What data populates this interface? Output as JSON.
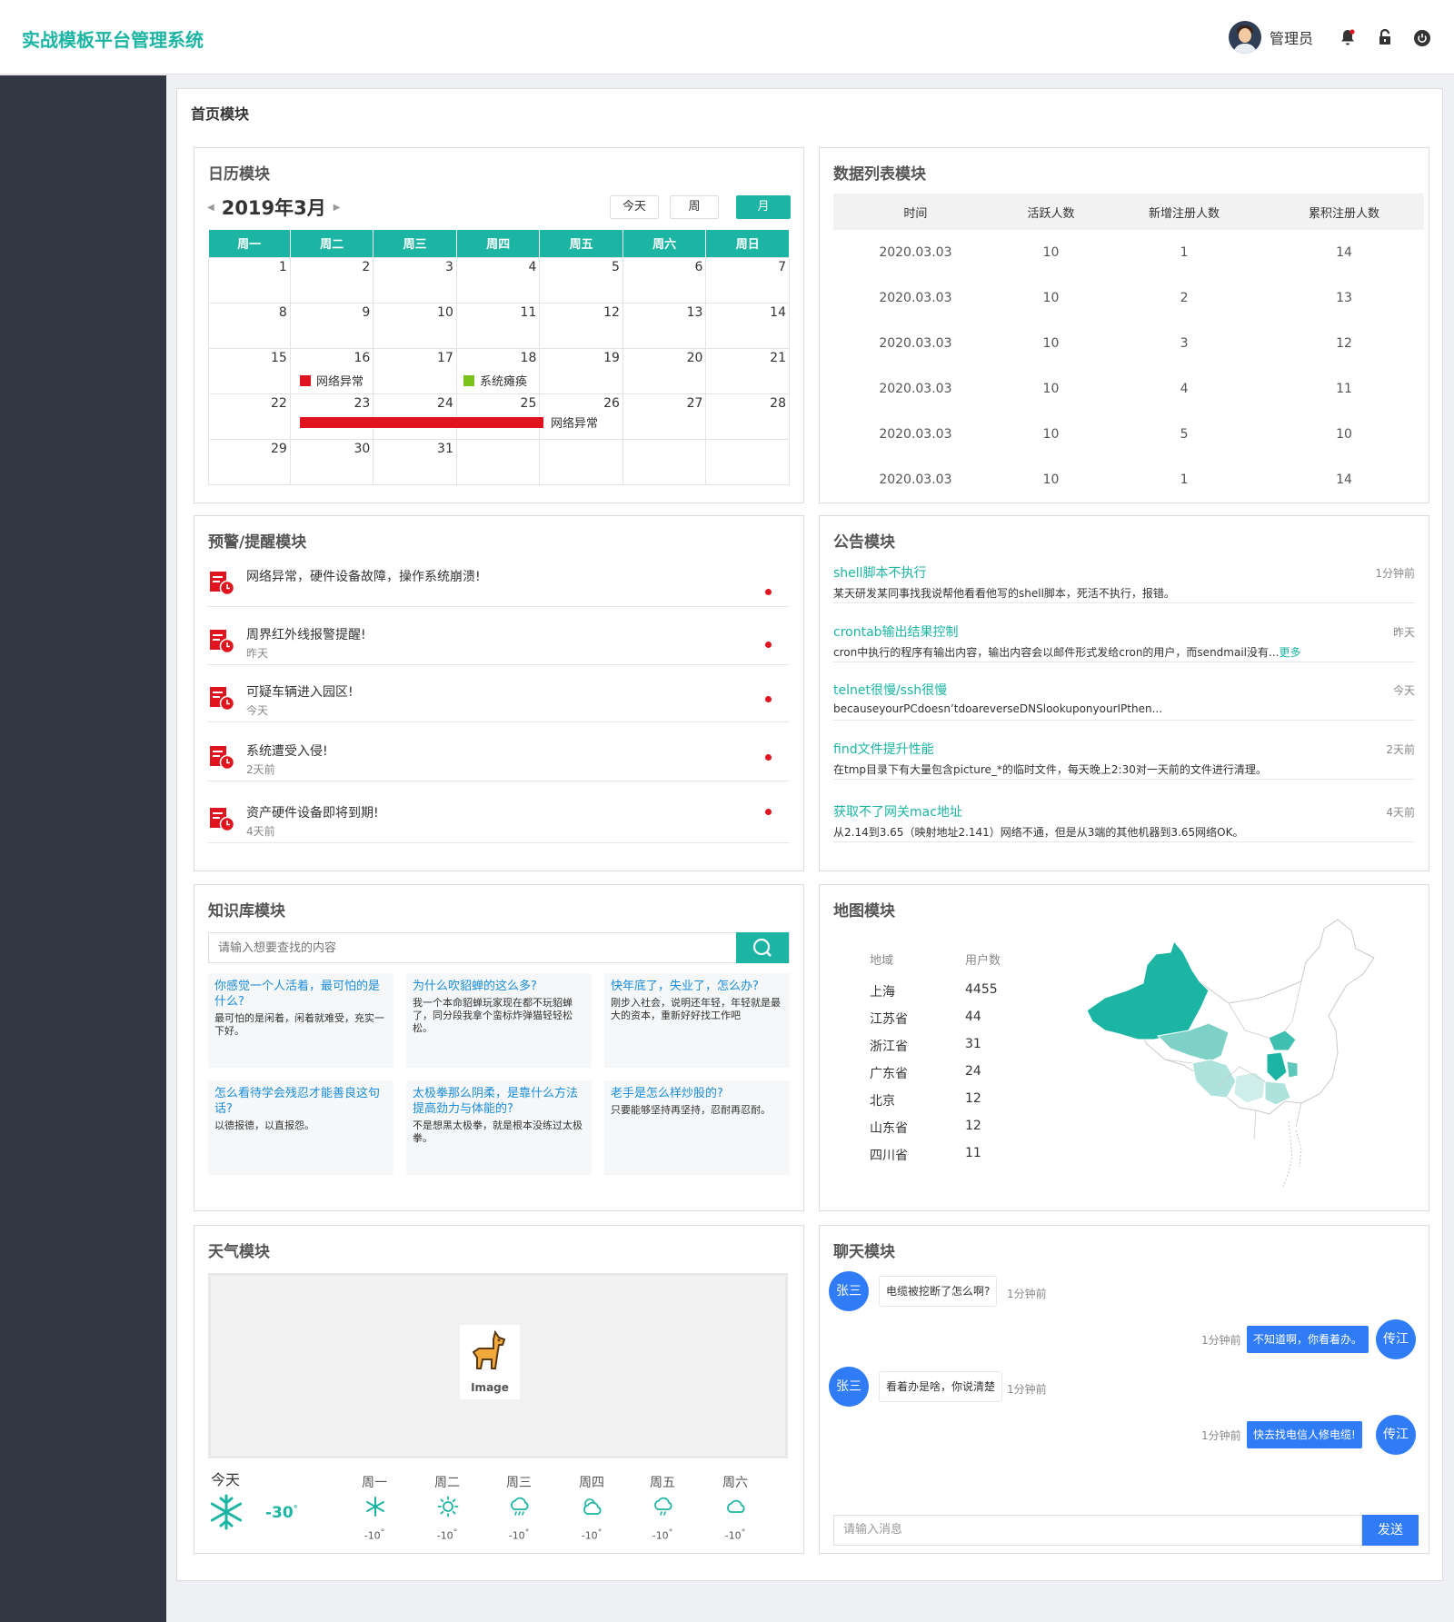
{
  "header": {
    "app_title": "实战模板平台管理系统",
    "user_name": "管理员"
  },
  "page": {
    "title": "首页模块"
  },
  "calendar": {
    "title": "日历模块",
    "month": "2019年3月",
    "btn_today": "今天",
    "btn_week": "周",
    "btn_month": "月",
    "weekdays": [
      "周一",
      "周二",
      "周三",
      "周四",
      "周五",
      "周六",
      "周日"
    ],
    "weeks": [
      [
        "1",
        "2",
        "3",
        "4",
        "5",
        "6",
        "7"
      ],
      [
        "8",
        "9",
        "10",
        "11",
        "12",
        "13",
        "14"
      ],
      [
        "15",
        "16",
        "17",
        "18",
        "19",
        "20",
        "21"
      ],
      [
        "22",
        "23",
        "24",
        "25",
        "26",
        "27",
        "28"
      ],
      [
        "29",
        "30",
        "31",
        "",
        "",
        "",
        ""
      ]
    ],
    "events": [
      {
        "label": "网络异常",
        "color": "#e0141f"
      },
      {
        "label": "系统瘫痪",
        "color": "#7cc21c"
      },
      {
        "label": "网络异常",
        "color": "#e0141f"
      }
    ]
  },
  "data_list": {
    "title": "数据列表模块",
    "columns": [
      "时间",
      "活跃人数",
      "新增注册人数",
      "累积注册人数"
    ],
    "rows": [
      [
        "2020.03.03",
        "10",
        "1",
        "14"
      ],
      [
        "2020.03.03",
        "10",
        "2",
        "13"
      ],
      [
        "2020.03.03",
        "10",
        "3",
        "12"
      ],
      [
        "2020.03.03",
        "10",
        "4",
        "11"
      ],
      [
        "2020.03.03",
        "10",
        "5",
        "10"
      ],
      [
        "2020.03.03",
        "10",
        "1",
        "14"
      ]
    ]
  },
  "warnings": {
    "title": "预警/提醒模块",
    "items": [
      {
        "text": "网络异常，硬件设备故障，操作系统崩溃!",
        "time": ""
      },
      {
        "text": "周界红外线报警提醒!",
        "time": "昨天"
      },
      {
        "text": "可疑车辆进入园区!",
        "time": "今天"
      },
      {
        "text": "系统遭受入侵!",
        "time": "2天前"
      },
      {
        "text": "资产硬件设备即将到期!",
        "time": "4天前"
      }
    ]
  },
  "notices": {
    "title": "公告模块",
    "more": "更多",
    "items": [
      {
        "title": "shell脚本不执行",
        "time": "1分钟前",
        "body": "某天研发某同事找我说帮他看看他写的shell脚本，死活不执行，报错。"
      },
      {
        "title": "crontab输出结果控制",
        "time": "昨天",
        "body": "cron中执行的程序有输出内容，输出内容会以邮件形式发给cron的用户，而sendmail没有..."
      },
      {
        "title": "telnet很慢/ssh很慢",
        "time": "今天",
        "body": "becauseyourPCdoesn’tdoareverseDNSlookuponyourIPthen..."
      },
      {
        "title": "find文件提升性能",
        "time": "2天前",
        "body": "在tmp目录下有大量包含picture_*的临时文件，每天晚上2:30对一天前的文件进行清理。"
      },
      {
        "title": "获取不了网关mac地址",
        "time": "4天前",
        "body": "从2.14到3.65（映射地址2.141）网络不通，但是从3端的其他机器到3.65网络OK。"
      }
    ]
  },
  "knowledge": {
    "title": "知识库模块",
    "search_placeholder": "请输入想要查找的内容",
    "cards": [
      {
        "title": "你感觉一个人活着，最可怕的是什么?",
        "body": "最可怕的是闲着，闲着就难受，充实一下好。"
      },
      {
        "title": "为什么吹貂蝉的这么多?",
        "body": "我一个本命貂蝉玩家现在都不玩貂蝉了，同分段我拿个蛮标炸弹猫轻轻松松。"
      },
      {
        "title": "快年底了，失业了，怎么办?",
        "body": "刚步入社会，说明还年轻，年轻就是最大的资本，重新好好找工作吧"
      },
      {
        "title": "怎么看待学会残忍才能善良这句话?",
        "body": "以德报德，以直报怨。"
      },
      {
        "title": "太极拳那么阴柔，是靠什么方法提高劲力与体能的?",
        "body": "不是想黑太极拳，就是根本没练过太极拳。"
      },
      {
        "title": "老手是怎么样炒股的?",
        "body": "只要能够坚持再坚持，忍耐再忍耐。"
      }
    ]
  },
  "map": {
    "title": "地图模块",
    "col_region": "地域",
    "col_users": "用户数",
    "rows": [
      [
        "上海",
        "4455"
      ],
      [
        "江苏省",
        "44"
      ],
      [
        "浙江省",
        "31"
      ],
      [
        "广东省",
        "24"
      ],
      [
        "北京",
        "12"
      ],
      [
        "山东省",
        "12"
      ],
      [
        "四川省",
        "11"
      ]
    ]
  },
  "weather": {
    "title": "天气模块",
    "image_label": "Image",
    "today_label": "今天",
    "today_temp": "-30",
    "degree": "°",
    "days": [
      {
        "day": "周一",
        "icon": "snow-icon",
        "temp": "-10"
      },
      {
        "day": "周二",
        "icon": "sun-icon",
        "temp": "-10"
      },
      {
        "day": "周三",
        "icon": "rain-icon",
        "temp": "-10"
      },
      {
        "day": "周四",
        "icon": "partly-cloudy-icon",
        "temp": "-10"
      },
      {
        "day": "周五",
        "icon": "drizzle-icon",
        "temp": "-10"
      },
      {
        "day": "周六",
        "icon": "cloud-icon",
        "temp": "-10"
      }
    ]
  },
  "chat": {
    "title": "聊天模块",
    "input_placeholder": "请输入消息",
    "send_label": "发送",
    "messages": [
      {
        "from": "张三",
        "text": "电缆被挖断了怎么啊?",
        "time": "1分钟前"
      },
      {
        "from": "传江",
        "text": "不知道啊，你看着办。",
        "time": "1分钟前"
      },
      {
        "from": "张三",
        "text": "看着办是啥，你说清楚",
        "time": "1分钟前"
      },
      {
        "from": "传江",
        "text": "快去找电信人修电缆!",
        "time": "1分钟前"
      }
    ]
  },
  "colors": {
    "accent": "#1cb5a3",
    "chat_blue": "#2f7cf6",
    "alert_red": "#e0141f",
    "sidebar": "#333744"
  }
}
